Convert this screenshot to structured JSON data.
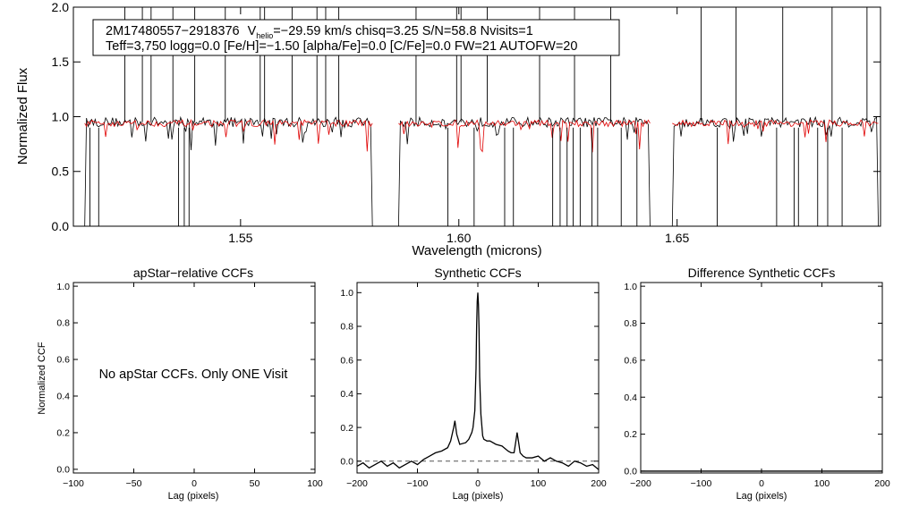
{
  "chart_data": [
    {
      "type": "line",
      "ylabel": "Normalized Flux",
      "xlabel": "Wavelength (microns)",
      "xlim": [
        1.5117,
        1.6966
      ],
      "ylim": [
        0.0,
        2.0
      ],
      "xticks": [
        1.55,
        1.6,
        1.65
      ],
      "xtick_labels": [
        "1.55",
        "1.60",
        "1.65"
      ],
      "yticks": [
        0.0,
        0.5,
        1.0,
        1.5,
        2.0
      ],
      "ytick_labels": [
        "0.0",
        "0.5",
        "1.0",
        "1.5",
        "2.0"
      ],
      "legend_box": {
        "star_id": "2M17480557−2918376",
        "v_main": "V",
        "v_sub": "helio",
        "rest_line1": "=−29.59 km/s  chisq=3.25  S/N=58.8  Nvisits=1",
        "line2": "Teff=3,750 logg=0.0 [Fe/H]=−1.50 [alpha/Fe]=0.0 [C/Fe]=0.0 FW=21 AUTOFW=20"
      },
      "chips": [
        [
          1.5143,
          1.5802
        ],
        [
          1.5862,
          1.6438
        ],
        [
          1.6489,
          1.6961
        ]
      ],
      "series": [
        {
          "color": "#000000",
          "continuum": 0.95,
          "noise": 0.045
        },
        {
          "color": "#e00000",
          "continuum": 0.94,
          "noise": 0.03
        }
      ],
      "spikes_up": [
        1.5235,
        1.5275,
        1.5295,
        1.5345,
        1.5395,
        1.5465,
        1.5545,
        1.5555,
        1.5618,
        1.5675,
        1.5695,
        1.5725,
        1.5902,
        1.5995,
        1.6005,
        1.6065,
        1.6185,
        1.6265,
        1.6348,
        1.6555,
        1.6635,
        1.6742,
        1.6855,
        1.6935
      ],
      "spikes_down": [
        1.5155,
        1.5175,
        1.5358,
        1.5371,
        1.5382,
        1.5975,
        1.6035,
        1.6105,
        1.6125,
        1.6215,
        1.6232,
        1.6248,
        1.6262,
        1.6278,
        1.6305,
        1.6318,
        1.6372,
        1.6408,
        1.6592,
        1.6728,
        1.6768,
        1.6778,
        1.6822,
        1.6845,
        1.6878
      ]
    },
    {
      "type": "line",
      "title": "apStar−relative CCFs",
      "xlabel": "Lag (pixels)",
      "ylabel": "Normalized CCF",
      "xlim": [
        -100,
        100
      ],
      "ylim": [
        -0.02,
        1.02
      ],
      "xticks": [
        -100,
        -50,
        0,
        50,
        100
      ],
      "xtick_labels": [
        "−100",
        "−50",
        "0",
        "50",
        "100"
      ],
      "yticks": [
        0.0,
        0.2,
        0.4,
        0.6,
        0.8,
        1.0
      ],
      "ytick_labels": [
        "0.0",
        "0.2",
        "0.4",
        "0.6",
        "0.8",
        "1.0"
      ],
      "note": "No apStar CCFs.  Only ONE Visit",
      "series": []
    },
    {
      "type": "line",
      "title": "Synthetic CCFs",
      "xlabel": "Lag (pixels)",
      "xlim": [
        -200,
        200
      ],
      "ylim": [
        -0.07,
        1.06
      ],
      "xticks": [
        -200,
        -100,
        0,
        100,
        200
      ],
      "xtick_labels": [
        "−200",
        "−100",
        "0",
        "100",
        "200"
      ],
      "yticks": [
        0.0,
        0.2,
        0.4,
        0.6,
        0.8,
        1.0
      ],
      "ytick_labels": [
        "0.0",
        "0.2",
        "0.4",
        "0.6",
        "0.8",
        "1.0"
      ],
      "zero_line": "dashed",
      "series": [
        {
          "color": "#000000",
          "x": [
            -200,
            -190,
            -180,
            -170,
            -160,
            -150,
            -140,
            -130,
            -120,
            -110,
            -100,
            -90,
            -80,
            -70,
            -60,
            -50,
            -45,
            -40,
            -38,
            -35,
            -30,
            -20,
            -15,
            -10,
            -8,
            -5,
            -3,
            -2,
            -1,
            0,
            1,
            2,
            3,
            5,
            8,
            10,
            15,
            20,
            30,
            40,
            50,
            55,
            60,
            63,
            65,
            68,
            70,
            75,
            80,
            90,
            100,
            110,
            120,
            130,
            140,
            150,
            160,
            170,
            180,
            190,
            200
          ],
          "y": [
            -0.03,
            -0.01,
            -0.04,
            -0.02,
            0.0,
            -0.03,
            -0.01,
            -0.04,
            -0.02,
            0.0,
            -0.02,
            0.01,
            0.03,
            0.05,
            0.06,
            0.08,
            0.12,
            0.2,
            0.24,
            0.16,
            0.1,
            0.11,
            0.13,
            0.17,
            0.2,
            0.3,
            0.55,
            0.8,
            0.95,
            1.0,
            0.93,
            0.78,
            0.5,
            0.28,
            0.15,
            0.13,
            0.12,
            0.12,
            0.1,
            0.09,
            0.06,
            0.05,
            0.05,
            0.12,
            0.17,
            0.1,
            0.05,
            0.03,
            0.02,
            0.02,
            0.03,
            0.0,
            0.02,
            0.0,
            -0.01,
            -0.03,
            0.0,
            -0.01,
            -0.03,
            -0.02,
            -0.05
          ]
        }
      ]
    },
    {
      "type": "line",
      "title": "Difference Synthetic CCFs",
      "xlabel": "Lag (pixels)",
      "xlim": [
        -200,
        200
      ],
      "ylim": [
        -0.01,
        1.02
      ],
      "xticks": [
        -200,
        -100,
        0,
        100,
        200
      ],
      "xtick_labels": [
        "−200",
        "−100",
        "0",
        "100",
        "200"
      ],
      "yticks": [
        0.0,
        0.2,
        0.4,
        0.6,
        0.8,
        1.0
      ],
      "ytick_labels": [
        "0.0",
        "0.2",
        "0.4",
        "0.6",
        "0.8",
        "1.0"
      ],
      "series": [
        {
          "color": "#000000",
          "x": [
            -200,
            200
          ],
          "y": [
            0.0,
            0.0
          ]
        }
      ]
    }
  ]
}
